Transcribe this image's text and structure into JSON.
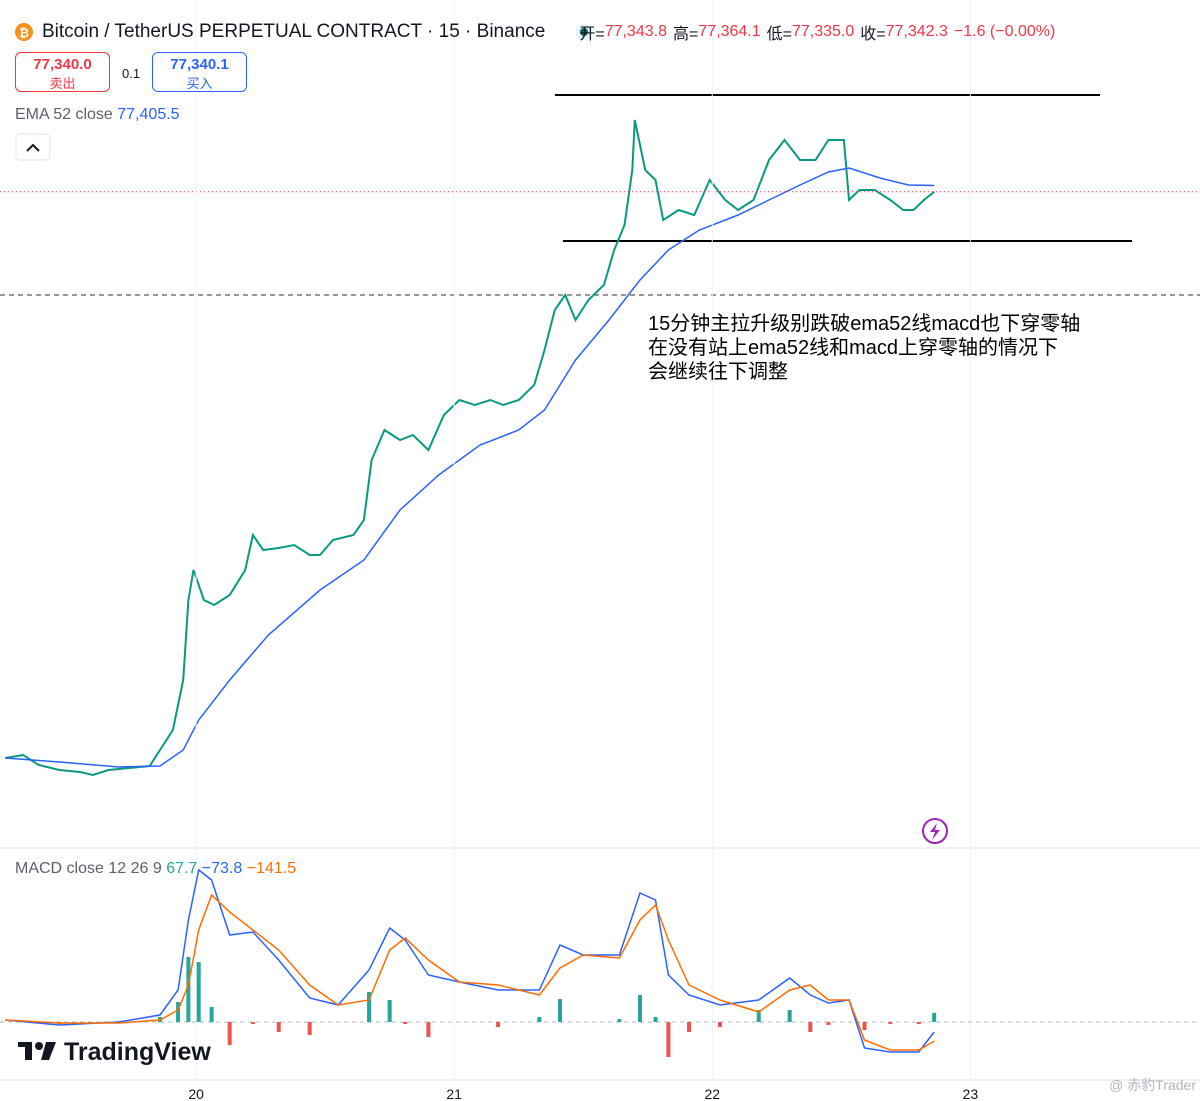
{
  "header": {
    "title": "Bitcoin / TetherUS PERPETUAL CONTRACT · 15 · Binance",
    "ohlc": [
      {
        "label": "开=",
        "value": "77,343.8"
      },
      {
        "label": "高=",
        "value": "77,364.1"
      },
      {
        "label": "低=",
        "value": "77,335.0"
      },
      {
        "label": "收=",
        "value": "77,342.3"
      }
    ],
    "change": "−1.6 (−0.00%)",
    "sell": {
      "price": "77,340.0",
      "label": "卖出"
    },
    "qty": "0.1",
    "buy": {
      "price": "77,340.1",
      "label": "买入"
    }
  },
  "legends": {
    "ema": {
      "label": "EMA 52 close",
      "value": "77,405.5"
    },
    "macd": {
      "label": "MACD close 12 26 9",
      "hist": "67.7",
      "macd": "−73.8",
      "signal": "−141.5"
    }
  },
  "annotation": [
    "15分钟主拉升级别跌破ema52线macd也下穿零轴",
    "在没有站上ema52线和macd上穿零轴的情况下",
    "会继续往下调整"
  ],
  "logo": "TradingView",
  "watermark": "@ 赤豹Trader",
  "chart_data": [
    {
      "type": "line",
      "xlim": [
        19.24,
        23.89
      ],
      "ylim": [
        70780,
        79260
      ],
      "series": [
        {
          "color": "#089981",
          "x": [
            19.26,
            19.33,
            19.39,
            19.47,
            19.55,
            19.6,
            19.66,
            19.74,
            19.82,
            19.86,
            19.91,
            19.95,
            19.97,
            19.99,
            20.03,
            20.07,
            20.13,
            20.19,
            20.22,
            20.26,
            20.32,
            20.38,
            20.44,
            20.48,
            20.53,
            20.61,
            20.65,
            20.68,
            20.73,
            20.79,
            20.84,
            20.9,
            20.96,
            21.02,
            21.08,
            21.14,
            21.19,
            21.25,
            21.31,
            21.35,
            21.39,
            21.43,
            21.47,
            21.52,
            21.58,
            21.62,
            21.66,
            21.69,
            21.7,
            21.74,
            21.78,
            21.81,
            21.87,
            21.93,
            21.99,
            22.05,
            22.1,
            22.16,
            22.22,
            22.28,
            22.34,
            22.4,
            22.45,
            22.51,
            22.53,
            22.57,
            22.63,
            22.69,
            22.74,
            22.78,
            22.82,
            22.86
          ],
          "values": [
            71680,
            71710,
            71610,
            71560,
            71540,
            71510,
            71560,
            71580,
            71600,
            71760,
            71960,
            72460,
            73260,
            73560,
            73260,
            73210,
            73310,
            73560,
            73910,
            73760,
            73780,
            73810,
            73710,
            73710,
            73860,
            73910,
            74060,
            74660,
            74960,
            74860,
            74910,
            74760,
            75110,
            75260,
            75210,
            75260,
            75210,
            75260,
            75410,
            75760,
            76160,
            76310,
            76060,
            76260,
            76410,
            76760,
            77010,
            77560,
            78060,
            77560,
            77460,
            77060,
            77160,
            77110,
            77460,
            77260,
            77160,
            77260,
            77660,
            77860,
            77660,
            77660,
            77860,
            77860,
            77260,
            77360,
            77360,
            77260,
            77160,
            77160,
            77260,
            77342.3
          ]
        },
        {
          "color": "#2962ff",
          "x": [
            19.26,
            19.47,
            19.7,
            19.86,
            19.95,
            20.01,
            20.13,
            20.28,
            20.48,
            20.65,
            20.79,
            20.94,
            21.1,
            21.25,
            21.35,
            21.47,
            21.6,
            21.72,
            21.83,
            21.95,
            22.1,
            22.22,
            22.34,
            22.45,
            22.53,
            22.65,
            22.76,
            22.86
          ],
          "values": [
            71680,
            71640,
            71590,
            71600,
            71760,
            72060,
            72460,
            72910,
            73360,
            73660,
            74160,
            74510,
            74810,
            74960,
            75160,
            75660,
            76060,
            76460,
            76760,
            76960,
            77110,
            77260,
            77410,
            77540,
            77580,
            77480,
            77410,
            77405.5
          ]
        }
      ]
    },
    {
      "type": "macd",
      "xlim": [
        19.24,
        23.89
      ],
      "ylim": [
        -429,
        1273
      ],
      "xticks": [
        20,
        21,
        22,
        23
      ],
      "x": [
        19.26,
        19.47,
        19.7,
        19.86,
        19.93,
        19.97,
        20.01,
        20.06,
        20.13,
        20.22,
        20.32,
        20.44,
        20.55,
        20.67,
        20.75,
        20.81,
        20.9,
        21.02,
        21.17,
        21.33,
        21.41,
        21.5,
        21.64,
        21.72,
        21.78,
        21.83,
        21.91,
        22.03,
        22.18,
        22.3,
        22.38,
        22.45,
        22.53,
        22.59,
        22.69,
        22.8,
        22.86
      ],
      "histogram": {
        "colors": [
          "#26a69a",
          "#ef5350"
        ],
        "values": [
          0,
          -15,
          7,
          37,
          148,
          481,
          444,
          111,
          -170,
          -15,
          -74,
          -96,
          0,
          222,
          163,
          -15,
          -111,
          0,
          -37,
          37,
          170,
          0,
          22,
          200,
          37,
          -259,
          -74,
          -37,
          89,
          89,
          -74,
          -22,
          0,
          -59,
          -15,
          -15,
          67.7
        ]
      },
      "series": [
        {
          "color": "#2962ff",
          "values": [
            15,
            -22,
            0,
            52,
            237,
            755,
            1125,
            1051,
            644,
            666,
            459,
            178,
            126,
            385,
            696,
            607,
            348,
            296,
            237,
            237,
            570,
            496,
            496,
            955,
            903,
            348,
            200,
            126,
            163,
            326,
            200,
            141,
            163,
            -192,
            -222,
            -222,
            -73.8
          ]
        },
        {
          "color": "#ff6d00",
          "values": [
            15,
            -7,
            -7,
            15,
            89,
            274,
            681,
            940,
            814,
            681,
            533,
            274,
            126,
            163,
            533,
            622,
            459,
            296,
            274,
            200,
            400,
            496,
            474,
            755,
            866,
            607,
            274,
            163,
            74,
            237,
            274,
            163,
            163,
            -133,
            -207,
            -207,
            -141.5
          ]
        }
      ]
    }
  ]
}
